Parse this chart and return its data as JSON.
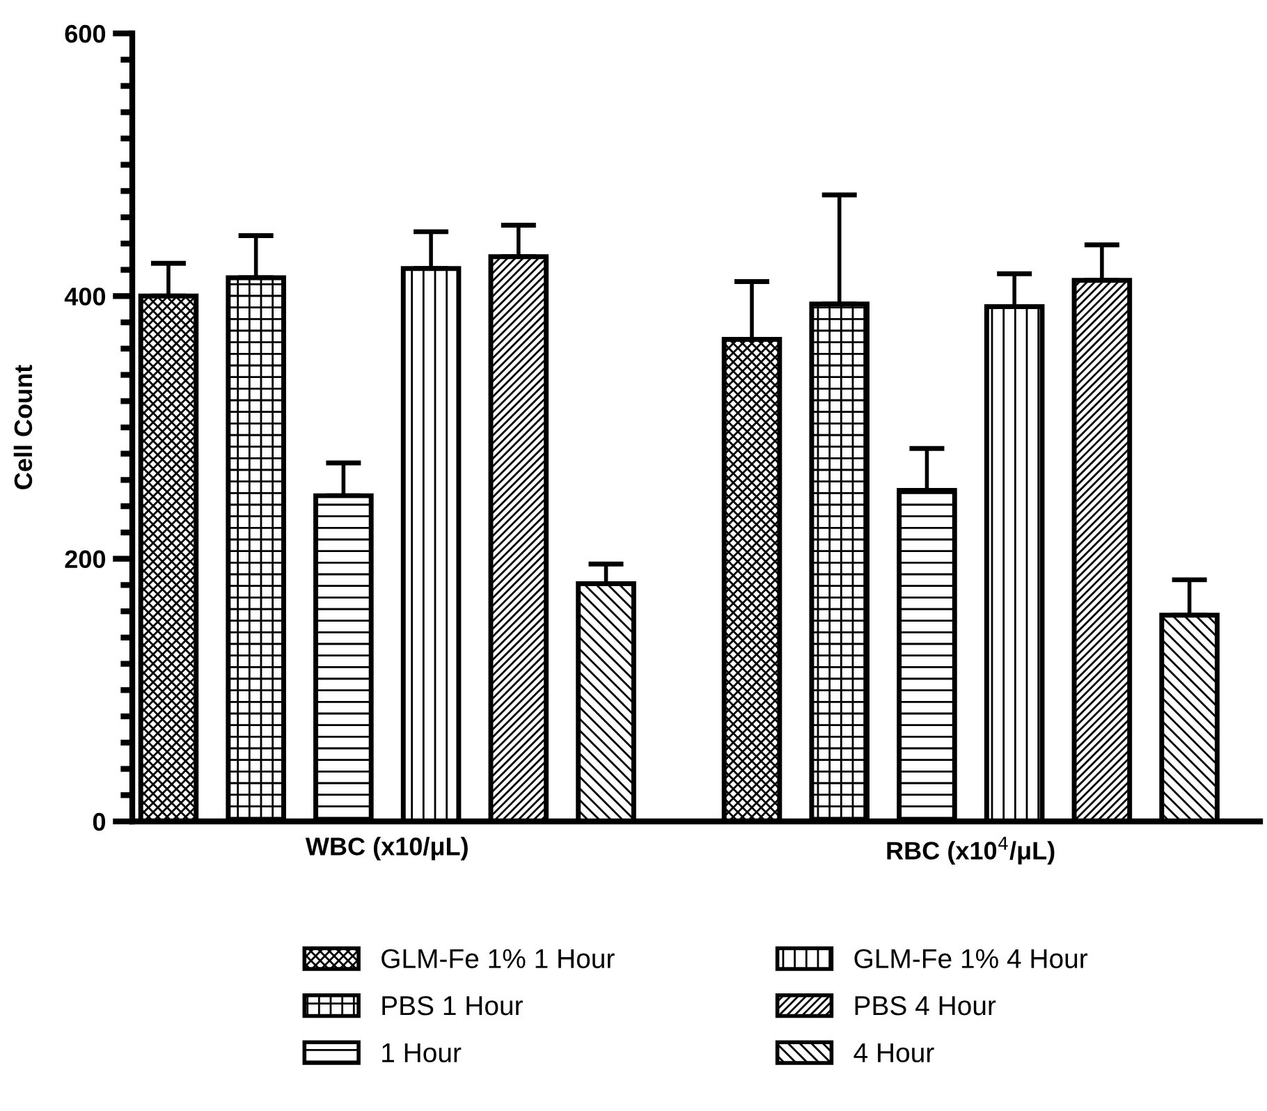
{
  "chart_data": {
    "type": "bar",
    "ylabel": "Cell Count",
    "categories": [
      "WBC (x10/μL)",
      "RBC (x10$^{4}$/μL)"
    ],
    "series": [
      {
        "name": "GLM-Fe 1% 1 Hour",
        "color": "#000000",
        "values": [
          400,
          367
        ],
        "errors": [
          [
            400,
            425
          ],
          [
            367,
            411
          ]
        ]
      },
      {
        "name": "PBS 1 Hour",
        "color": "#000000",
        "values": [
          414,
          394
        ],
        "errors": [
          [
            414,
            446
          ],
          [
            394,
            477
          ]
        ]
      },
      {
        "name": "1 Hour",
        "color": "#000000",
        "values": [
          248,
          252
        ],
        "errors": [
          [
            248,
            273
          ],
          [
            252,
            284
          ]
        ]
      },
      {
        "name": "GLM-Fe 1% 4 Hour",
        "color": "#000000",
        "values": [
          421,
          392
        ],
        "errors": [
          [
            421,
            449
          ],
          [
            392,
            417
          ]
        ]
      },
      {
        "name": "PBS 4 Hour",
        "color": "#000000",
        "values": [
          430,
          412
        ],
        "errors": [
          [
            430,
            454
          ],
          [
            412,
            439
          ]
        ]
      },
      {
        "name": "4 Hour",
        "color": "#000000",
        "values": [
          181,
          157
        ],
        "errors": [
          [
            181,
            196
          ],
          [
            157,
            184
          ]
        ]
      }
    ],
    "ylim": [
      0,
      600
    ],
    "yticks": [
      0,
      200,
      400,
      600
    ],
    "grid": false,
    "legend": "bottom"
  }
}
